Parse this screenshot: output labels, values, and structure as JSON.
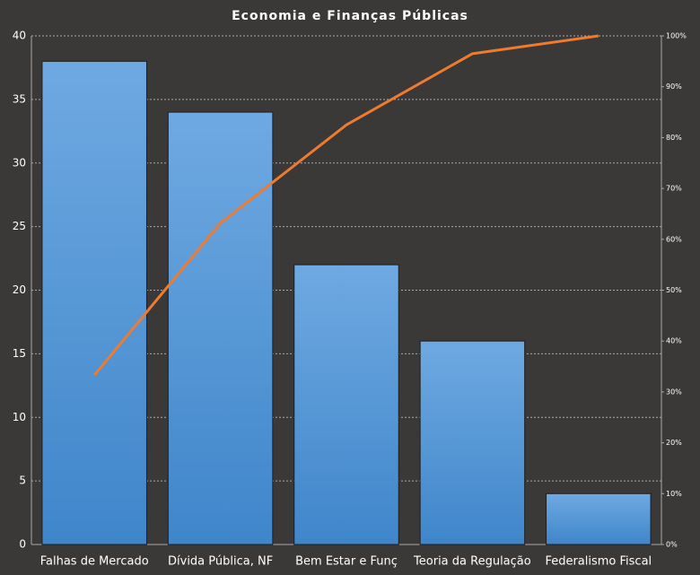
{
  "chart_data": {
    "type": "bar",
    "title": "Economia e Finanças Públicas",
    "categories": [
      "Falhas de Mercado",
      "Dívida Pública, NF",
      "Bem Estar e Funç",
      "Teoria da Regulação",
      "Federalismo Fiscal"
    ],
    "series": [
      {
        "type": "bar",
        "color": "#5a9ee0",
        "values": [
          38,
          34,
          22,
          16,
          4
        ]
      },
      {
        "type": "line",
        "axis": "y2",
        "color": "#ee7b2f",
        "values": [
          33.3,
          63.2,
          82.5,
          96.5,
          100
        ]
      }
    ],
    "ylim": [
      0,
      40
    ],
    "yticks": [
      0,
      5,
      10,
      15,
      20,
      25,
      30,
      35,
      40
    ],
    "y2lim": [
      0,
      100
    ],
    "y2ticks": [
      {
        "value": 0,
        "label": "0%"
      },
      {
        "value": 10,
        "label": "10%"
      },
      {
        "value": 20,
        "label": "20%"
      },
      {
        "value": 30,
        "label": "30%"
      },
      {
        "value": 40,
        "label": "40%"
      },
      {
        "value": 50,
        "label": "50%"
      },
      {
        "value": 60,
        "label": "60%"
      },
      {
        "value": 70,
        "label": "70%"
      },
      {
        "value": 80,
        "label": "80%"
      },
      {
        "value": 90,
        "label": "90%"
      },
      {
        "value": 100,
        "label": "100%"
      }
    ],
    "grid": true
  }
}
